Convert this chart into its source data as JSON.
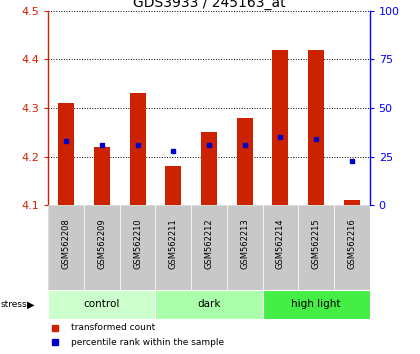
{
  "title": "GDS3933 / 245163_at",
  "samples": [
    "GSM562208",
    "GSM562209",
    "GSM562210",
    "GSM562211",
    "GSM562212",
    "GSM562213",
    "GSM562214",
    "GSM562215",
    "GSM562216"
  ],
  "transformed_counts": [
    4.31,
    4.22,
    4.33,
    4.18,
    4.25,
    4.28,
    4.42,
    4.42,
    4.11
  ],
  "percentile_ranks": [
    33,
    31,
    31,
    28,
    31,
    31,
    35,
    34,
    23
  ],
  "ylim": [
    4.1,
    4.5
  ],
  "yticks": [
    4.1,
    4.2,
    4.3,
    4.4,
    4.5
  ],
  "right_yticks": [
    0,
    25,
    50,
    75,
    100
  ],
  "right_ylim": [
    0,
    100
  ],
  "groups": [
    {
      "name": "control",
      "indices": [
        0,
        1,
        2
      ],
      "color": "#ccffcc"
    },
    {
      "name": "dark",
      "indices": [
        3,
        4,
        5
      ],
      "color": "#aaffaa"
    },
    {
      "name": "high light",
      "indices": [
        6,
        7,
        8
      ],
      "color": "#44ee44"
    }
  ],
  "bar_color": "#cc2200",
  "dot_color": "#0000cc",
  "tick_area_color": "#c8c8c8",
  "base_value": 4.1,
  "legend_items": [
    {
      "label": "transformed count",
      "color": "#cc2200"
    },
    {
      "label": "percentile rank within the sample",
      "color": "#0000cc"
    }
  ]
}
